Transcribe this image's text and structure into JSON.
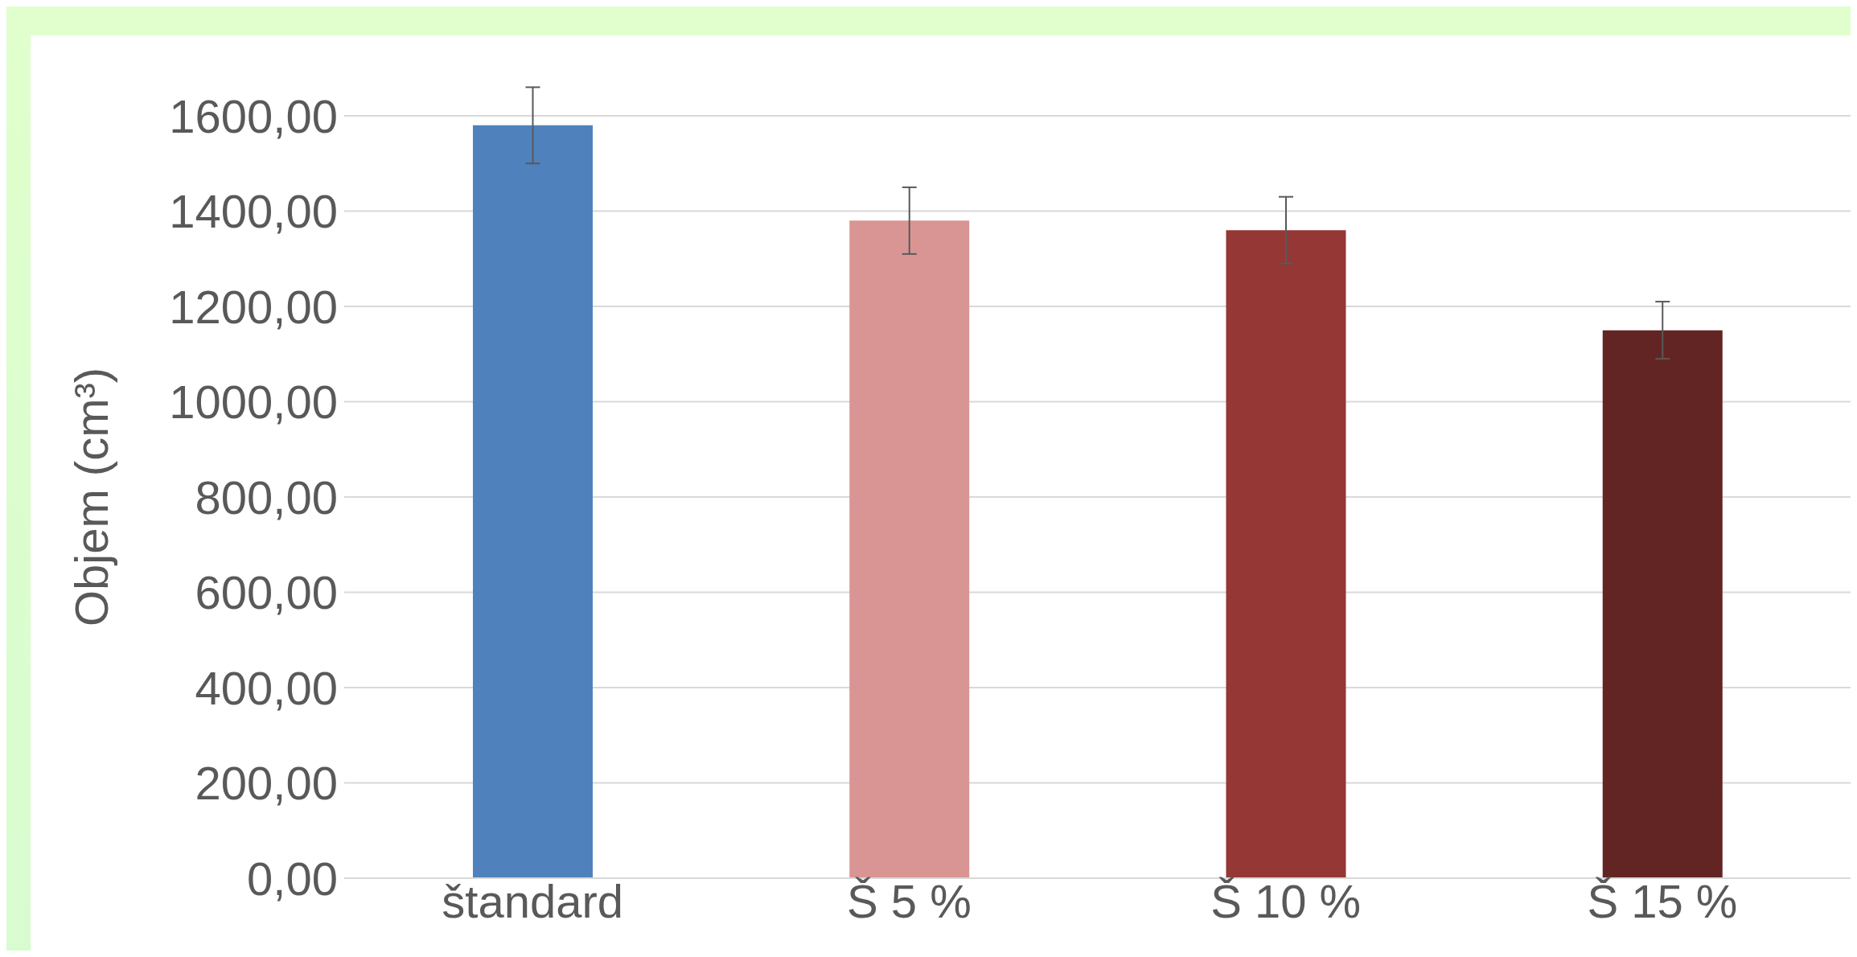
{
  "chart_data": {
    "type": "bar",
    "ylabel": "Objem (cm³)",
    "categories": [
      "štandard",
      "Š 5 %",
      "Š 10 %",
      "Š 15 %"
    ],
    "values": [
      1580,
      1380,
      1360,
      1150
    ],
    "colors": [
      "#4f81bd",
      "#d99594",
      "#953735",
      "#632523"
    ],
    "errors": [
      80,
      70,
      70,
      60
    ],
    "ylim": [
      0,
      1600
    ],
    "yticks": [
      {
        "value": 0,
        "label": "0,00"
      },
      {
        "value": 200,
        "label": "200,00"
      },
      {
        "value": 400,
        "label": "400,00"
      },
      {
        "value": 600,
        "label": "600,00"
      },
      {
        "value": 800,
        "label": "800,00"
      },
      {
        "value": 1000,
        "label": "1000,00"
      },
      {
        "value": 1200,
        "label": "1200,00"
      },
      {
        "value": 1400,
        "label": "1400,00"
      },
      {
        "value": 1600,
        "label": "1600,00"
      }
    ],
    "grid": "y"
  }
}
